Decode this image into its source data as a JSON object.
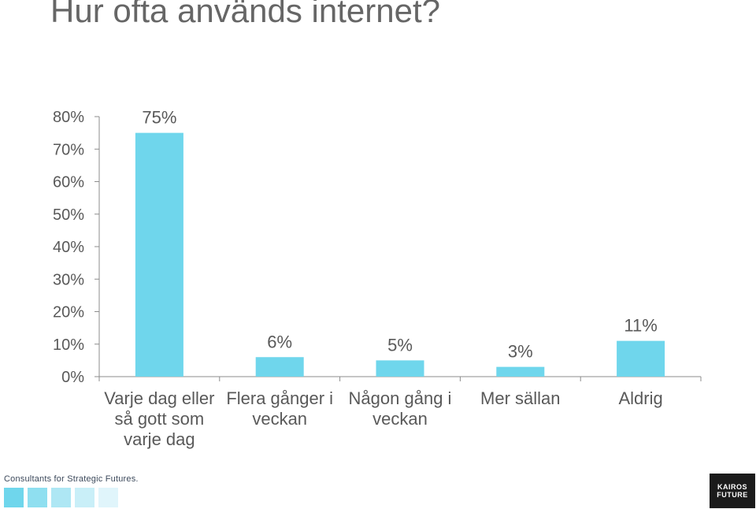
{
  "title": "Hur ofta används internet?",
  "chart_data": {
    "type": "bar",
    "categories": [
      "Varje dag eller så gott som varje dag",
      "Flera gånger i veckan",
      "Någon gång i veckan",
      "Mer sällan",
      "Aldrig"
    ],
    "category_lines": [
      [
        "Varje dag eller",
        "så gott som",
        "varje dag"
      ],
      [
        "Flera gånger i",
        "veckan"
      ],
      [
        "Någon gång i",
        "veckan"
      ],
      [
        "Mer sällan"
      ],
      [
        "Aldrig"
      ]
    ],
    "values": [
      75,
      6,
      5,
      3,
      11
    ],
    "data_labels": [
      "75%",
      "6%",
      "5%",
      "3%",
      "11%"
    ],
    "yticks": [
      "0%",
      "10%",
      "20%",
      "30%",
      "40%",
      "50%",
      "60%",
      "70%",
      "80%"
    ],
    "ylim": [
      0,
      80
    ],
    "bar_color": "#6fd6ec",
    "grid": false,
    "legend": "none"
  },
  "footer": {
    "tagline": "Consultants for Strategic Futures.",
    "swatch_colors": [
      "#6fd6ec",
      "#8fdff0",
      "#aee7f4",
      "#c9eff8",
      "#e0f5fb"
    ],
    "logo_line1": "KAIROS",
    "logo_line2": "FUTURE"
  }
}
